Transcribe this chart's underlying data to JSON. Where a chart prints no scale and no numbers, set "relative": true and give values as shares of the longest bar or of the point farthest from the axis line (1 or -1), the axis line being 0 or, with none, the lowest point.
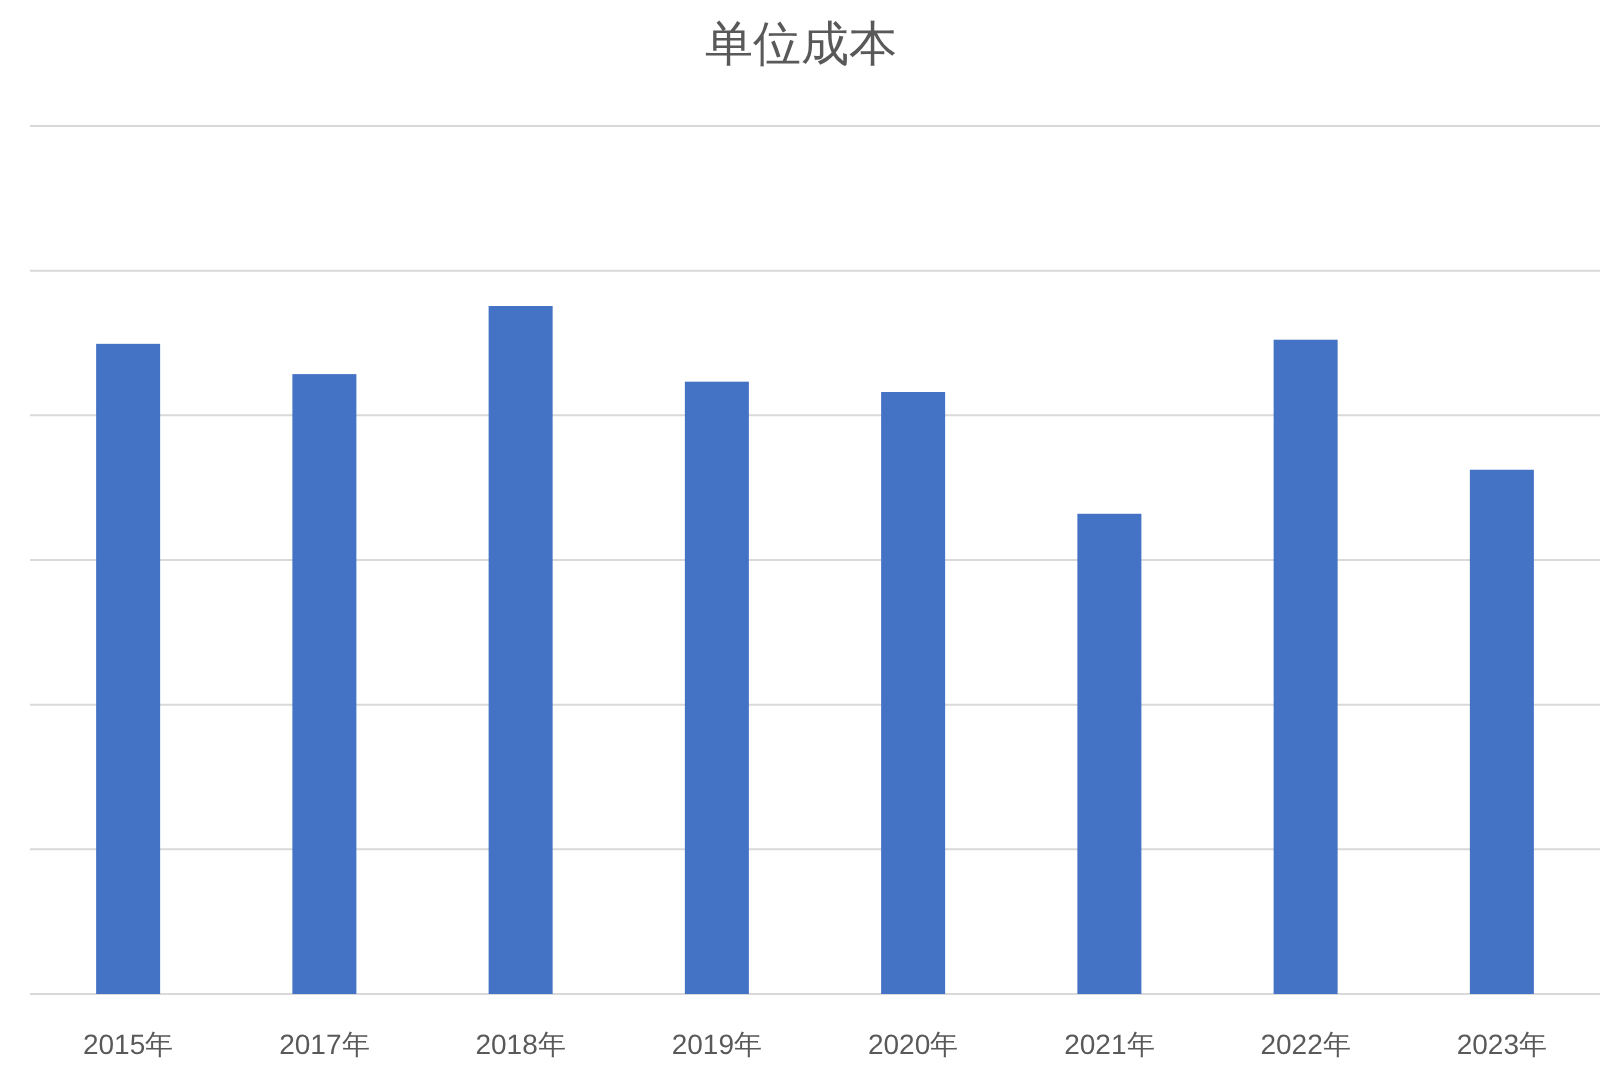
{
  "chart_data": {
    "type": "bar",
    "title": "单位成本",
    "categories": [
      "2015年",
      "2017年",
      "2018年",
      "2019年",
      "2020年",
      "2021年",
      "2022年",
      "2023年"
    ],
    "values": [
      0.945,
      0.901,
      1,
      0.89,
      0.875,
      0.698,
      0.951,
      0.762
    ],
    "color": "#4472c4",
    "relative": true,
    "grid": true
  }
}
